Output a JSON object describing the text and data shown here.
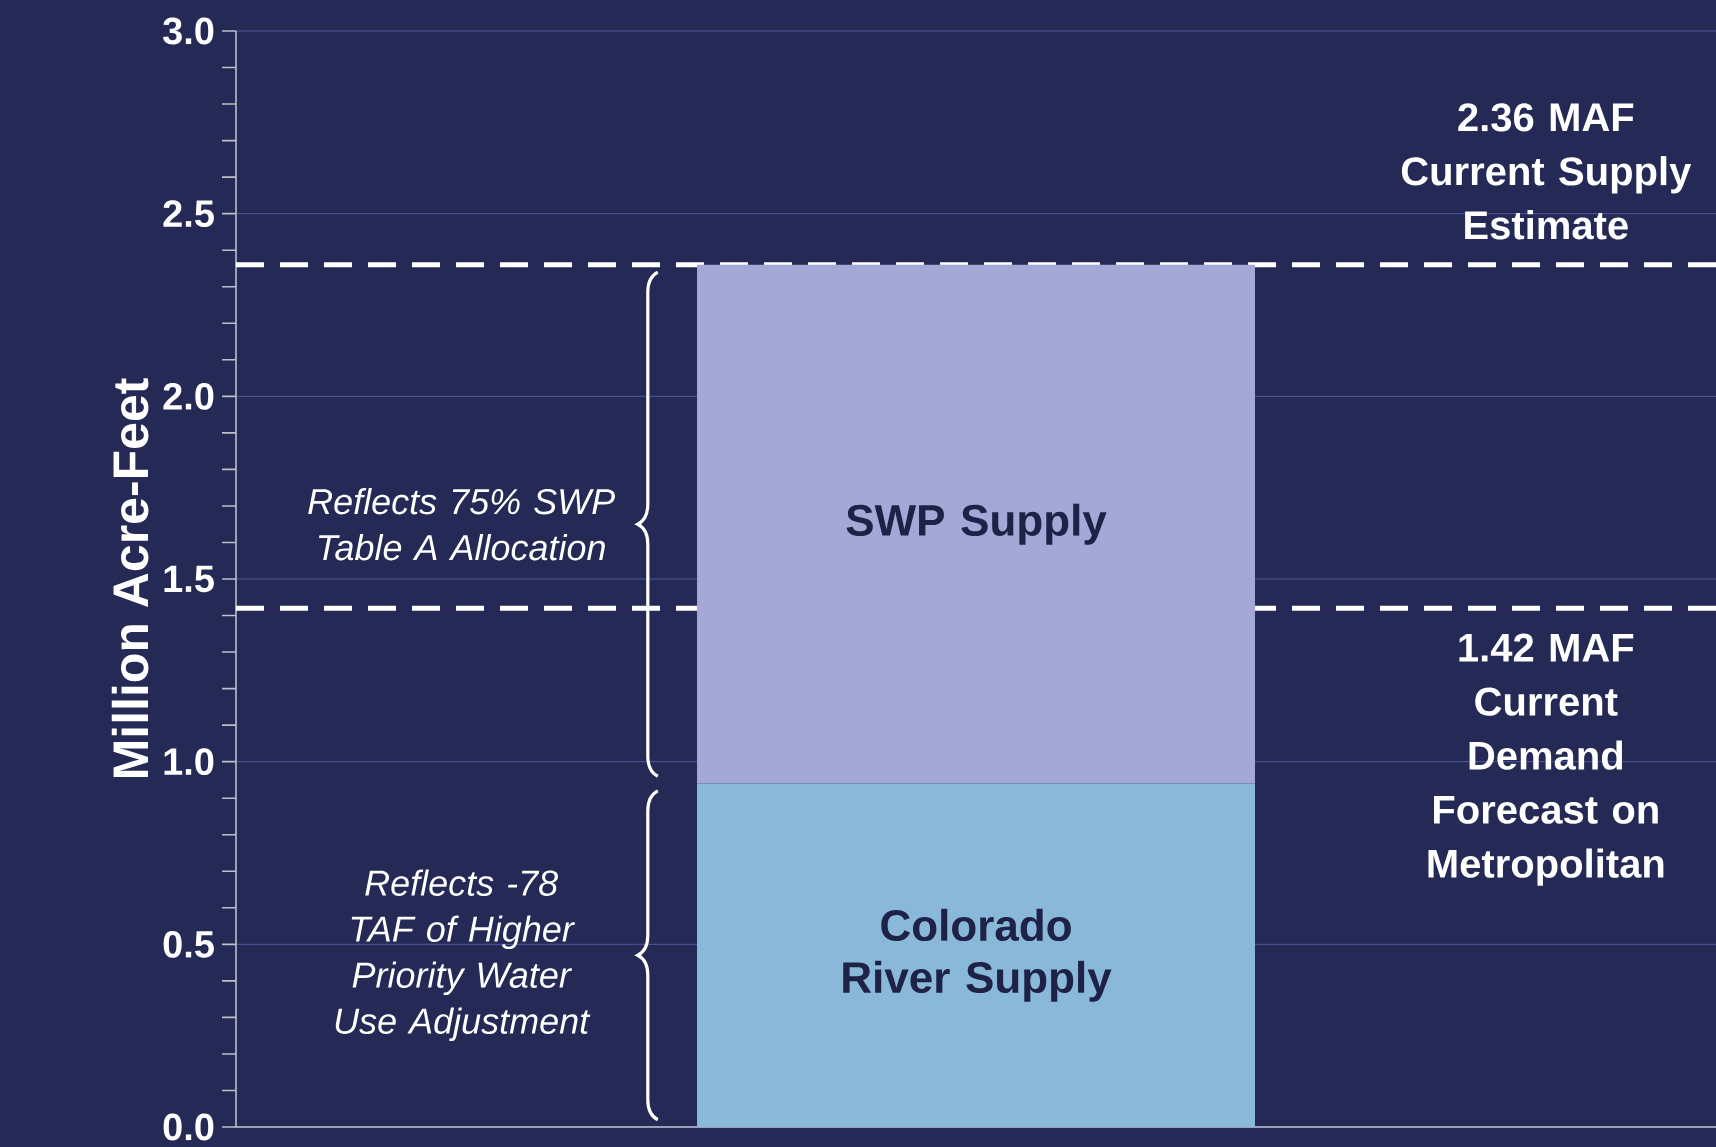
{
  "chart_data": {
    "type": "bar",
    "stacked": true,
    "categories": [
      null
    ],
    "series": [
      {
        "name": "Colorado River Supply",
        "color": "#8ab8d8",
        "values": [
          0.94
        ]
      },
      {
        "name": "SWP Supply",
        "color": "#a3a8d6",
        "values": [
          1.42
        ]
      }
    ],
    "ylabel": "Million Acre-Feet",
    "ylim": [
      0,
      3
    ],
    "yticks": [
      {
        "value": 0,
        "label": "0.0"
      },
      {
        "value": 0.5,
        "label": "0.5"
      },
      {
        "value": 1,
        "label": "1.0"
      },
      {
        "value": 1.5,
        "label": "1.5"
      },
      {
        "value": 2,
        "label": "2.0"
      },
      {
        "value": 2.5,
        "label": "2.5"
      },
      {
        "value": 3,
        "label": "3.0"
      }
    ],
    "grid": "y",
    "ref_lines": [
      {
        "axis": "y",
        "value": 2.36,
        "label": "2.36 MAF Current Supply Estimate",
        "line_style": "dashed",
        "color": "#ffffff"
      },
      {
        "axis": "y",
        "value": 1.42,
        "label": "1.42 MAF Current Demand Forecast on Metropolitan",
        "line_style": "dashed",
        "color": "#ffffff"
      }
    ],
    "annotations": [
      "Reflects 75% SWP Table A Allocation",
      "Reflects -78 TAF of Higher Priority Water Use Adjustment"
    ]
  }
}
